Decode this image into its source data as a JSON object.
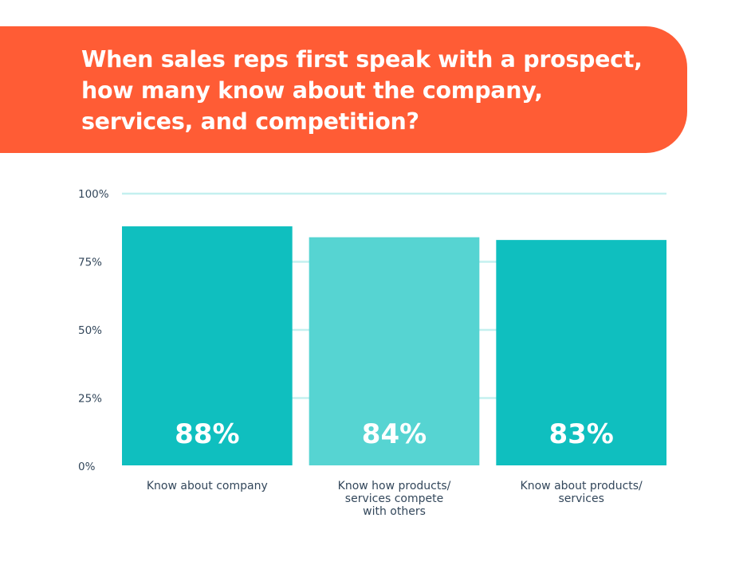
{
  "header": {
    "title_lines": [
      "When sales reps first speak with a prospect,",
      "how many know about the company,",
      "services, and competition?"
    ]
  },
  "colors": {
    "header_bg": "#ff5c35",
    "bar_primary": "#0fbfbf",
    "bar_secondary": "#56d4d2",
    "grid": "#c4f0ef"
  },
  "chart_data": {
    "type": "bar",
    "title": "When sales reps first speak with a prospect, how many know about the company, services, and competition?",
    "xlabel": "",
    "ylabel": "",
    "ylim": [
      0,
      100
    ],
    "yticks": [
      0,
      25,
      50,
      75,
      100
    ],
    "ytick_labels": [
      "0%",
      "25%",
      "50%",
      "75%",
      "100%"
    ],
    "grid": true,
    "categories": [
      [
        "Know about company"
      ],
      [
        "Know how products/",
        "services compete",
        "with others"
      ],
      [
        "Know about products/",
        "services"
      ]
    ],
    "values": [
      88,
      84,
      83
    ],
    "value_labels": [
      "88%",
      "84%",
      "83%"
    ],
    "bar_colors": [
      "#0fbfbf",
      "#56d4d2",
      "#0fbfbf"
    ]
  }
}
